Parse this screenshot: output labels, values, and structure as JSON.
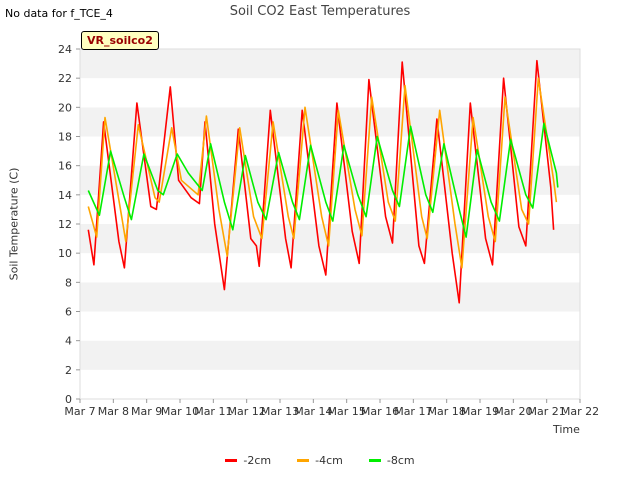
{
  "header": {
    "no_data_note": "No data for f_TCE_4",
    "site_badge": "VR_soilco2"
  },
  "chart_data": {
    "type": "line",
    "title": "Soil CO2 East Temperatures",
    "xlabel": "Time",
    "ylabel": "Soil Temperature (C)",
    "xlim": [
      "2024-03-07",
      "2024-03-22"
    ],
    "ylim": [
      0,
      24
    ],
    "yticks": [
      0,
      2,
      4,
      6,
      8,
      10,
      12,
      14,
      16,
      18,
      20,
      22,
      24
    ],
    "xtick_labels": [
      "Mar 7",
      "Mar 8",
      "Mar 9",
      "Mar 10",
      "Mar 11",
      "Mar 12",
      "Mar 13",
      "Mar 14",
      "Mar 15",
      "Mar 16",
      "Mar 17",
      "Mar 18",
      "Mar 19",
      "Mar 20",
      "Mar 21",
      "Mar 22"
    ],
    "grid": "horizontal bands",
    "legend_position": "bottom",
    "series": [
      {
        "name": "-2cm",
        "color": "#ff0000",
        "points": [
          [
            "2024-03-07 06:00",
            11.6
          ],
          [
            "2024-03-07 10:00",
            9.2
          ],
          [
            "2024-03-07 17:00",
            19.0
          ],
          [
            "2024-03-08 04:00",
            10.8
          ],
          [
            "2024-03-08 08:00",
            9.0
          ],
          [
            "2024-03-08 17:00",
            20.3
          ],
          [
            "2024-03-09 03:00",
            13.2
          ],
          [
            "2024-03-09 07:00",
            13.0
          ],
          [
            "2024-03-09 17:00",
            21.4
          ],
          [
            "2024-03-09 23:00",
            15.0
          ],
          [
            "2024-03-10 08:00",
            13.8
          ],
          [
            "2024-03-10 14:00",
            13.4
          ],
          [
            "2024-03-10 18:00",
            19.0
          ],
          [
            "2024-03-11 01:00",
            12.0
          ],
          [
            "2024-03-11 08:00",
            7.5
          ],
          [
            "2024-03-11 18:00",
            18.5
          ],
          [
            "2024-03-12 03:00",
            11.0
          ],
          [
            "2024-03-12 07:00",
            10.5
          ],
          [
            "2024-03-12 09:00",
            9.1
          ],
          [
            "2024-03-12 17:00",
            19.8
          ],
          [
            "2024-03-13 04:00",
            11.0
          ],
          [
            "2024-03-13 08:00",
            9.0
          ],
          [
            "2024-03-13 16:00",
            19.8
          ],
          [
            "2024-03-14 04:00",
            10.5
          ],
          [
            "2024-03-14 09:00",
            8.5
          ],
          [
            "2024-03-14 17:00",
            20.3
          ],
          [
            "2024-03-15 04:00",
            11.5
          ],
          [
            "2024-03-15 09:00",
            9.3
          ],
          [
            "2024-03-15 16:00",
            21.9
          ],
          [
            "2024-03-16 04:00",
            12.5
          ],
          [
            "2024-03-16 09:00",
            10.7
          ],
          [
            "2024-03-16 16:00",
            23.1
          ],
          [
            "2024-03-17 04:00",
            10.5
          ],
          [
            "2024-03-17 08:00",
            9.3
          ],
          [
            "2024-03-17 17:00",
            19.2
          ],
          [
            "2024-03-18 04:00",
            10.0
          ],
          [
            "2024-03-18 09:00",
            6.6
          ],
          [
            "2024-03-18 17:00",
            20.3
          ],
          [
            "2024-03-19 04:00",
            11.0
          ],
          [
            "2024-03-19 09:00",
            9.2
          ],
          [
            "2024-03-19 17:00",
            22.0
          ],
          [
            "2024-03-20 04:00",
            11.8
          ],
          [
            "2024-03-20 09:00",
            10.5
          ],
          [
            "2024-03-20 17:00",
            23.2
          ],
          [
            "2024-03-21 03:00",
            14.5
          ],
          [
            "2024-03-21 05:00",
            11.6
          ]
        ]
      },
      {
        "name": "-4cm",
        "color": "#ffa500",
        "points": [
          [
            "2024-03-07 06:00",
            13.2
          ],
          [
            "2024-03-07 12:00",
            11.1
          ],
          [
            "2024-03-07 18:00",
            19.3
          ],
          [
            "2024-03-08 06:00",
            12.5
          ],
          [
            "2024-03-08 09:00",
            10.8
          ],
          [
            "2024-03-08 18:00",
            18.8
          ],
          [
            "2024-03-09 06:00",
            13.8
          ],
          [
            "2024-03-09 09:00",
            13.5
          ],
          [
            "2024-03-09 18:00",
            18.6
          ],
          [
            "2024-03-10 01:00",
            15.0
          ],
          [
            "2024-03-10 13:00",
            14.0
          ],
          [
            "2024-03-10 19:00",
            19.4
          ],
          [
            "2024-03-11 04:00",
            13.0
          ],
          [
            "2024-03-11 10:00",
            9.8
          ],
          [
            "2024-03-11 19:00",
            18.6
          ],
          [
            "2024-03-12 05:00",
            12.5
          ],
          [
            "2024-03-12 11:00",
            11.0
          ],
          [
            "2024-03-12 19:00",
            19.0
          ],
          [
            "2024-03-13 06:00",
            12.5
          ],
          [
            "2024-03-13 10:00",
            11.0
          ],
          [
            "2024-03-13 18:00",
            20.0
          ],
          [
            "2024-03-14 06:00",
            12.5
          ],
          [
            "2024-03-14 11:00",
            10.5
          ],
          [
            "2024-03-14 18:00",
            19.8
          ],
          [
            "2024-03-15 06:00",
            13.0
          ],
          [
            "2024-03-15 11:00",
            11.2
          ],
          [
            "2024-03-15 18:00",
            20.7
          ],
          [
            "2024-03-16 06:00",
            13.5
          ],
          [
            "2024-03-16 11:00",
            12.2
          ],
          [
            "2024-03-16 18:00",
            21.5
          ],
          [
            "2024-03-17 06:00",
            12.5
          ],
          [
            "2024-03-17 10:00",
            11.0
          ],
          [
            "2024-03-17 19:00",
            19.8
          ],
          [
            "2024-03-18 06:00",
            12.0
          ],
          [
            "2024-03-18 11:00",
            9.0
          ],
          [
            "2024-03-18 19:00",
            19.3
          ],
          [
            "2024-03-19 06:00",
            12.5
          ],
          [
            "2024-03-19 11:00",
            10.8
          ],
          [
            "2024-03-19 18:00",
            20.7
          ],
          [
            "2024-03-20 06:00",
            13.0
          ],
          [
            "2024-03-20 11:00",
            12.0
          ],
          [
            "2024-03-20 18:00",
            22.0
          ],
          [
            "2024-03-21 05:00",
            15.0
          ],
          [
            "2024-03-21 07:00",
            13.5
          ]
        ]
      },
      {
        "name": "-8cm",
        "color": "#00ee00",
        "points": [
          [
            "2024-03-07 06:00",
            14.3
          ],
          [
            "2024-03-07 14:00",
            12.6
          ],
          [
            "2024-03-07 22:00",
            17.0
          ],
          [
            "2024-03-08 08:00",
            13.8
          ],
          [
            "2024-03-08 13:00",
            12.3
          ],
          [
            "2024-03-08 22:00",
            16.8
          ],
          [
            "2024-03-09 08:00",
            14.3
          ],
          [
            "2024-03-09 12:00",
            14.0
          ],
          [
            "2024-03-09 22:00",
            16.8
          ],
          [
            "2024-03-10 06:00",
            15.5
          ],
          [
            "2024-03-10 16:00",
            14.3
          ],
          [
            "2024-03-10 22:00",
            17.5
          ],
          [
            "2024-03-11 08:00",
            13.5
          ],
          [
            "2024-03-11 14:00",
            11.6
          ],
          [
            "2024-03-11 23:00",
            16.7
          ],
          [
            "2024-03-12 08:00",
            13.5
          ],
          [
            "2024-03-12 14:00",
            12.3
          ],
          [
            "2024-03-12 23:00",
            16.9
          ],
          [
            "2024-03-13 09:00",
            13.5
          ],
          [
            "2024-03-13 14:00",
            12.3
          ],
          [
            "2024-03-13 22:00",
            17.4
          ],
          [
            "2024-03-14 09:00",
            13.5
          ],
          [
            "2024-03-14 14:00",
            12.2
          ],
          [
            "2024-03-14 22:00",
            17.4
          ],
          [
            "2024-03-15 08:00",
            14.0
          ],
          [
            "2024-03-15 14:00",
            12.5
          ],
          [
            "2024-03-15 22:00",
            18.0
          ],
          [
            "2024-03-16 09:00",
            14.3
          ],
          [
            "2024-03-16 14:00",
            13.2
          ],
          [
            "2024-03-16 22:00",
            18.7
          ],
          [
            "2024-03-17 09:00",
            14.0
          ],
          [
            "2024-03-17 14:00",
            12.8
          ],
          [
            "2024-03-17 22:00",
            17.5
          ],
          [
            "2024-03-18 09:00",
            13.0
          ],
          [
            "2024-03-18 14:00",
            11.1
          ],
          [
            "2024-03-18 22:00",
            17.1
          ],
          [
            "2024-03-19 08:00",
            13.5
          ],
          [
            "2024-03-19 14:00",
            12.2
          ],
          [
            "2024-03-19 22:00",
            17.8
          ],
          [
            "2024-03-20 09:00",
            14.0
          ],
          [
            "2024-03-20 14:00",
            13.1
          ],
          [
            "2024-03-20 22:00",
            18.9
          ],
          [
            "2024-03-21 07:00",
            15.5
          ],
          [
            "2024-03-21 08:00",
            14.5
          ]
        ]
      }
    ]
  }
}
